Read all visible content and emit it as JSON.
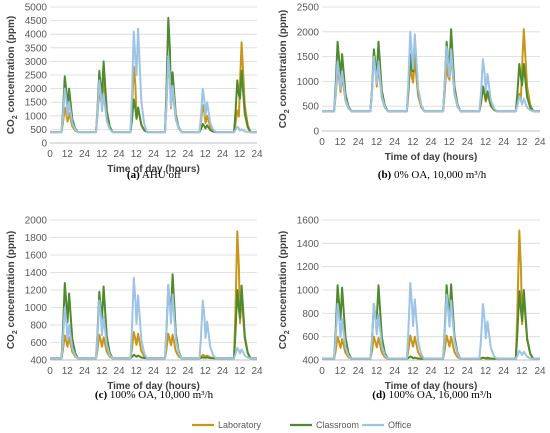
{
  "colors": {
    "laboratory": "#C9961A",
    "classroom": "#4E8A2E",
    "office": "#9DC3E6",
    "grid": "#D9D9D9",
    "axis": "#BFBFBF"
  },
  "legend": [
    {
      "name": "Laboratory",
      "color": "#C9961A"
    },
    {
      "name": "Classroom",
      "color": "#4E8A2E"
    },
    {
      "name": "Office",
      "color": "#9DC3E6"
    }
  ],
  "chart_data": [
    {
      "type": "line",
      "caption_label": "(a)",
      "caption_text": "AHU off",
      "xlabel": "Time of day (hours)",
      "ylabel": "CO2 concentration (ppm)",
      "ylim": [
        0,
        5000
      ],
      "yticks": [
        "0",
        "500",
        "1000",
        "1500",
        "2000",
        "2500",
        "3000",
        "3500",
        "4000",
        "4500",
        "5000"
      ],
      "xticks": [
        "0",
        "12",
        "24",
        "12",
        "24",
        "12",
        "24",
        "12",
        "24",
        "12",
        "24",
        "12",
        "24"
      ],
      "baseline": 400,
      "peaks": {
        "Laboratory": [
          [
            1300,
            1100
          ],
          [
            2000,
            2400
          ],
          [
            2800,
            1300
          ],
          [
            3100,
            2000
          ],
          [
            1400,
            1000
          ],
          [
            1200,
            3700
          ]
        ],
        "Classroom": [
          [
            2450,
            2000
          ],
          [
            2650,
            3000
          ],
          [
            1600,
            1300
          ],
          [
            4600,
            2600
          ],
          [
            700,
            650
          ],
          [
            2300,
            2650
          ]
        ],
        "Office": [
          [
            2000,
            1500
          ],
          [
            2300,
            1800
          ],
          [
            4100,
            4200
          ],
          [
            3200,
            2100
          ],
          [
            2000,
            1500
          ],
          [
            600,
            500
          ]
        ]
      }
    },
    {
      "type": "line",
      "caption_label": "(b)",
      "caption_text": "0% OA, 10,000 m³/h",
      "xlabel": "Time of day (hours)",
      "ylabel": "CO2 concentration (ppm)",
      "ylim": [
        0,
        2500
      ],
      "yticks": [
        "0",
        "500",
        "1000",
        "1500",
        "2000",
        "2500"
      ],
      "xticks": [
        "0",
        "12",
        "24",
        "12",
        "24",
        "12",
        "24",
        "12",
        "24",
        "12",
        "24",
        "12",
        "24"
      ],
      "baseline": 400,
      "peaks": {
        "Laboratory": [
          [
            1250,
            1100
          ],
          [
            1500,
            1300
          ],
          [
            1350,
            1450
          ],
          [
            1350,
            1550
          ],
          [
            850,
            750
          ],
          [
            750,
            2050
          ]
        ],
        "Classroom": [
          [
            1800,
            1550
          ],
          [
            1650,
            1800
          ],
          [
            1550,
            1850
          ],
          [
            1800,
            2050
          ],
          [
            900,
            800
          ],
          [
            1350,
            1350
          ]
        ],
        "Office": [
          [
            1400,
            1200
          ],
          [
            1500,
            1400
          ],
          [
            2000,
            1950
          ],
          [
            1700,
            1650
          ],
          [
            1450,
            1150
          ],
          [
            700,
            650
          ]
        ]
      }
    },
    {
      "type": "line",
      "caption_label": "(c)",
      "caption_text": "100% OA, 10,000 m³/h",
      "xlabel": "Time of day (hours)",
      "ylabel": "CO2 concentration (ppm)",
      "ylim": [
        400,
        2000
      ],
      "yticks": [
        "400",
        "600",
        "800",
        "1000",
        "1200",
        "1400",
        "1600",
        "1800",
        "2000"
      ],
      "xticks": [
        "0",
        "12",
        "24",
        "12",
        "24",
        "12",
        "24",
        "12",
        "24",
        "12",
        "24",
        "12",
        "24"
      ],
      "baseline": 420,
      "peaks": {
        "Laboratory": [
          [
            680,
            660
          ],
          [
            690,
            660
          ],
          [
            720,
            700
          ],
          [
            700,
            690
          ],
          [
            460,
            450
          ],
          [
            1870,
            1150
          ]
        ],
        "Classroom": [
          [
            1280,
            1160
          ],
          [
            1180,
            1240
          ],
          [
            460,
            450
          ],
          [
            1250,
            1380
          ],
          [
            430,
            430
          ],
          [
            1200,
            1250
          ]
        ],
        "Office": [
          [
            1000,
            800
          ],
          [
            1080,
            900
          ],
          [
            1340,
            1140
          ],
          [
            1260,
            1150
          ],
          [
            1080,
            840
          ],
          [
            540,
            520
          ]
        ]
      }
    },
    {
      "type": "line",
      "caption_label": "(d)",
      "caption_text": "100% OA, 16,000 m³/h",
      "xlabel": "Time of day (hours)",
      "ylabel": "CO2 concentration (ppm)",
      "ylim": [
        400,
        1600
      ],
      "yticks": [
        "400",
        "600",
        "800",
        "1000",
        "1200",
        "1400",
        "1600"
      ],
      "xticks": [
        "0",
        "12",
        "24",
        "12",
        "24",
        "12",
        "24",
        "12",
        "24",
        "12",
        "24",
        "12",
        "24"
      ],
      "baseline": 410,
      "peaks": {
        "Laboratory": [
          [
            600,
            580
          ],
          [
            600,
            590
          ],
          [
            610,
            600
          ],
          [
            610,
            600
          ],
          [
            420,
            410
          ],
          [
            1510,
            950
          ]
        ],
        "Classroom": [
          [
            1040,
            1020
          ],
          [
            880,
            1040
          ],
          [
            430,
            420
          ],
          [
            1040,
            1050
          ],
          [
            420,
            420
          ],
          [
            990,
            1000
          ]
        ],
        "Office": [
          [
            880,
            750
          ],
          [
            880,
            790
          ],
          [
            1060,
            920
          ],
          [
            960,
            910
          ],
          [
            880,
            730
          ],
          [
            480,
            470
          ]
        ]
      }
    }
  ]
}
